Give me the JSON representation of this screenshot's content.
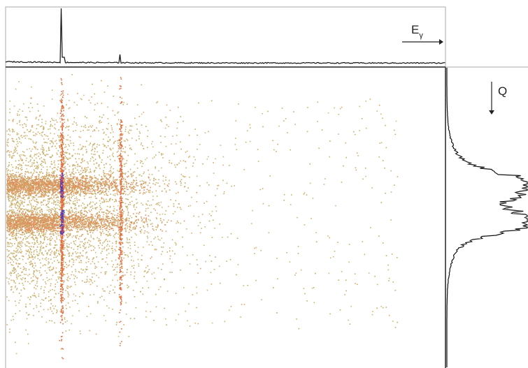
{
  "energy_label": {
    "main": "E",
    "subscript": "γ"
  },
  "charge_label": "Q"
}
